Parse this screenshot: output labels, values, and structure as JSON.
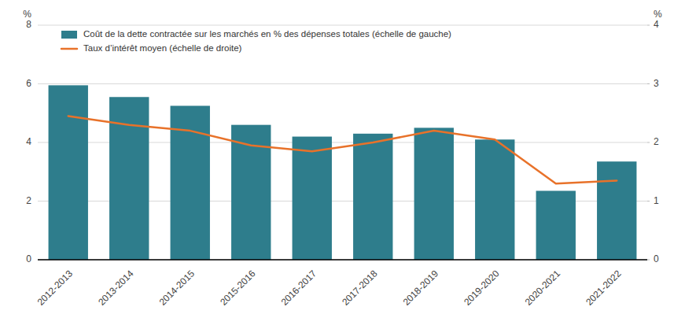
{
  "chart_data": {
    "type": "bar",
    "categories": [
      "2012-2013",
      "2013-2014",
      "2014-2015",
      "2015-2016",
      "2016-2017",
      "2017-2018",
      "2018-2019",
      "2019-2020",
      "2020-2021",
      "2021-2022"
    ],
    "series": [
      {
        "name": "Coût de la dette contractée sur les marchés en % des dépenses totales (échelle de gauche)",
        "type": "bar",
        "color": "#2E7D8C",
        "values": [
          5.95,
          5.55,
          5.25,
          4.6,
          4.2,
          4.3,
          4.5,
          4.1,
          2.35,
          3.35
        ]
      },
      {
        "name": "Taux d’intérêt moyen (échelle de droite)",
        "type": "line",
        "axis": "y2",
        "color": "#E8722A",
        "values": [
          2.45,
          2.3,
          2.2,
          1.95,
          1.85,
          2.0,
          2.2,
          2.05,
          1.3,
          1.35
        ]
      }
    ],
    "ylim": [
      0,
      8
    ],
    "yticks": [
      0,
      2,
      4,
      6,
      8
    ],
    "y2lim": [
      0,
      4
    ],
    "y2ticks": [
      0,
      1,
      2,
      3,
      4
    ],
    "y_label": "%",
    "y2_label": "%",
    "grid": true,
    "legend": "upper left"
  }
}
